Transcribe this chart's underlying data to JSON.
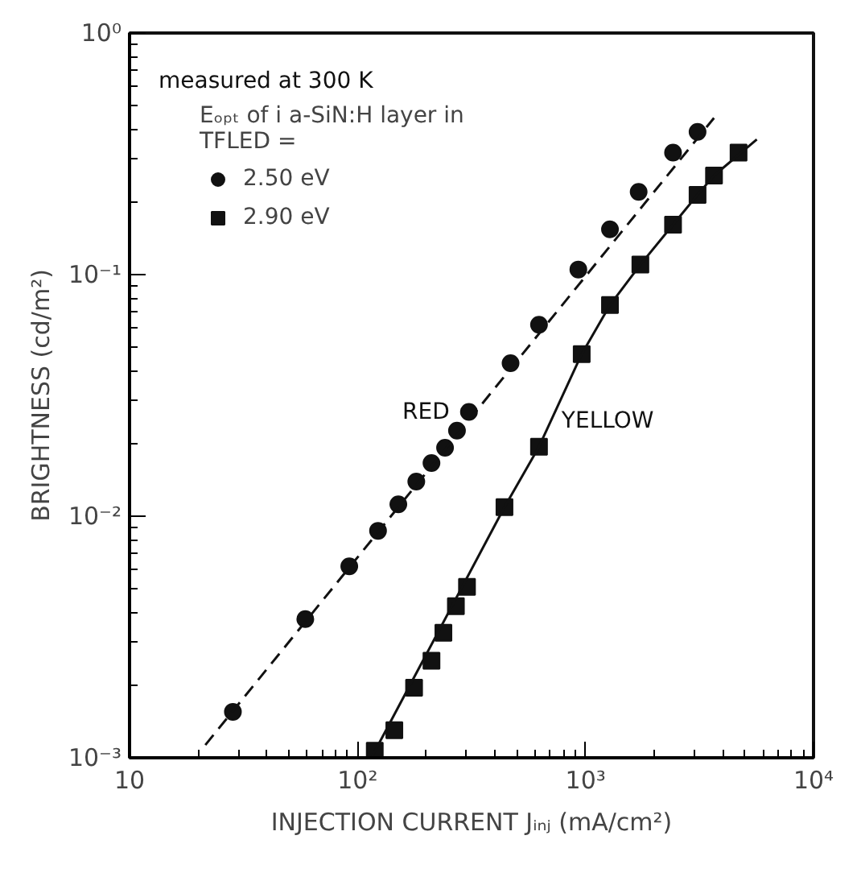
{
  "chart_data": {
    "type": "scatter",
    "xlabel": "INJECTION CURRENT Jᵢₙⱼ (mA/cm²)",
    "ylabel": "BRIGHTNESS (cd/m²)",
    "legend_title": "Eₒₚₜ of i a-SiN:H layer in TFLED =",
    "log": "xy",
    "grid": false,
    "legend": "top left",
    "xlim": [
      10,
      10000
    ],
    "ylim": [
      0.001,
      1
    ],
    "xticks": [
      {
        "value": 10,
        "label": "10"
      },
      {
        "value": 100,
        "label": "10²"
      },
      {
        "value": 1000,
        "label": "10³"
      },
      {
        "value": 10000,
        "label": "10⁴"
      }
    ],
    "yticks": [
      {
        "value": 0.001,
        "label": "10⁻³"
      },
      {
        "value": 0.01,
        "label": "10⁻²"
      },
      {
        "value": 0.1,
        "label": "10⁻¹"
      },
      {
        "value": 1,
        "label": "10⁰"
      }
    ],
    "annotations": [
      "measured at 300 K",
      {
        "text": "RED",
        "x": 308,
        "y": 0.027
      },
      {
        "text": "YELLOW",
        "x": 625,
        "y": 0.0194
      }
    ],
    "series": [
      {
        "name": "2.50 eV",
        "marker": "circle",
        "color": "#111111",
        "x": [
          28.4,
          59,
          92,
          123,
          151,
          181,
          211,
          242,
          273,
          308,
          469,
          625,
          930,
          1280,
          1710,
          2420,
          3100
        ],
        "values": [
          0.00155,
          0.00375,
          0.0062,
          0.0087,
          0.0112,
          0.0139,
          0.0166,
          0.0192,
          0.0226,
          0.027,
          0.043,
          0.062,
          0.105,
          0.154,
          0.22,
          0.32,
          0.39
        ]
      },
      {
        "name": "2.90 eV",
        "marker": "square",
        "color": "#111111",
        "x": [
          119,
          145,
          177,
          211,
          238,
          270,
          302,
          441,
          625,
          962,
          1280,
          1740,
          2420,
          3100,
          3660,
          4690
        ],
        "values": [
          0.00107,
          0.0013,
          0.00195,
          0.00252,
          0.00329,
          0.00424,
          0.0051,
          0.0109,
          0.0194,
          0.0469,
          0.0748,
          0.11,
          0.161,
          0.214,
          0.257,
          0.32
        ]
      },
      {
        "type": "line",
        "line_style": "dashed",
        "color": "#111111",
        "x": [
          21.5,
          3660
        ],
        "values": [
          0.00113,
          0.445
        ]
      },
      {
        "type": "line",
        "line_style": "solid",
        "color": "#111111",
        "x": [
          115,
          441,
          625,
          962,
          1280,
          1740,
          2420,
          3100,
          3660,
          5640
        ],
        "values": [
          0.001,
          0.0109,
          0.0194,
          0.0469,
          0.0748,
          0.11,
          0.161,
          0.214,
          0.257,
          0.363
        ]
      }
    ]
  }
}
